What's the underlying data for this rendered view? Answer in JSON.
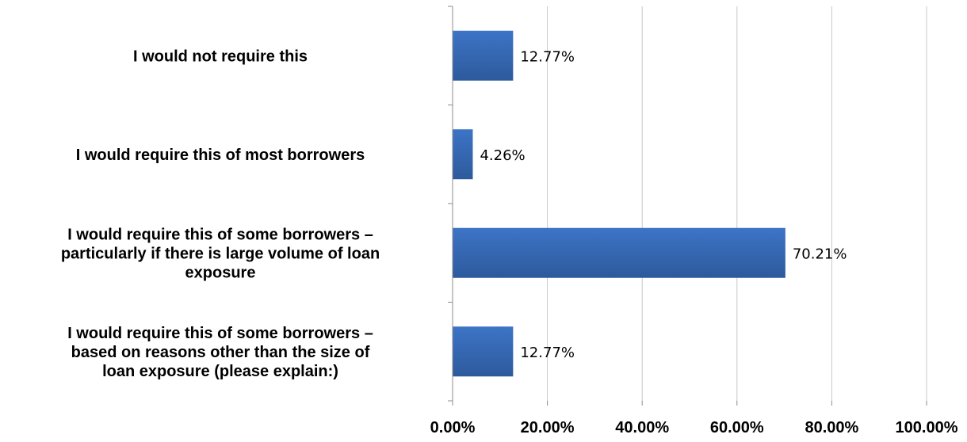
{
  "chart_data": {
    "type": "bar",
    "orientation": "horizontal",
    "categories": [
      [
        "I would not require this"
      ],
      [
        "I would require this of most borrowers"
      ],
      [
        "I would require this of some borrowers –",
        "particularly if there is large volume of loan",
        "exposure"
      ],
      [
        "I would require this of some borrowers –",
        "based on reasons other than the size of",
        "loan exposure (please explain:)"
      ]
    ],
    "values": [
      12.77,
      4.26,
      70.21,
      12.77
    ],
    "data_labels": [
      "12.77%",
      "4.26%",
      "70.21%",
      "12.77%"
    ],
    "xlim": [
      0,
      100
    ],
    "xticks": [
      0,
      20,
      40,
      60,
      80,
      100
    ],
    "xtick_labels": [
      "0.00%",
      "20.00%",
      "40.00%",
      "60.00%",
      "80.00%",
      "100.00%"
    ],
    "grid": "vertical",
    "legend": "none",
    "bar_color": "#3d74c6",
    "bar_color_dark": "#2d5a9c",
    "grid_color": "#c8c8c8",
    "axis_color": "#8c8c8c"
  }
}
